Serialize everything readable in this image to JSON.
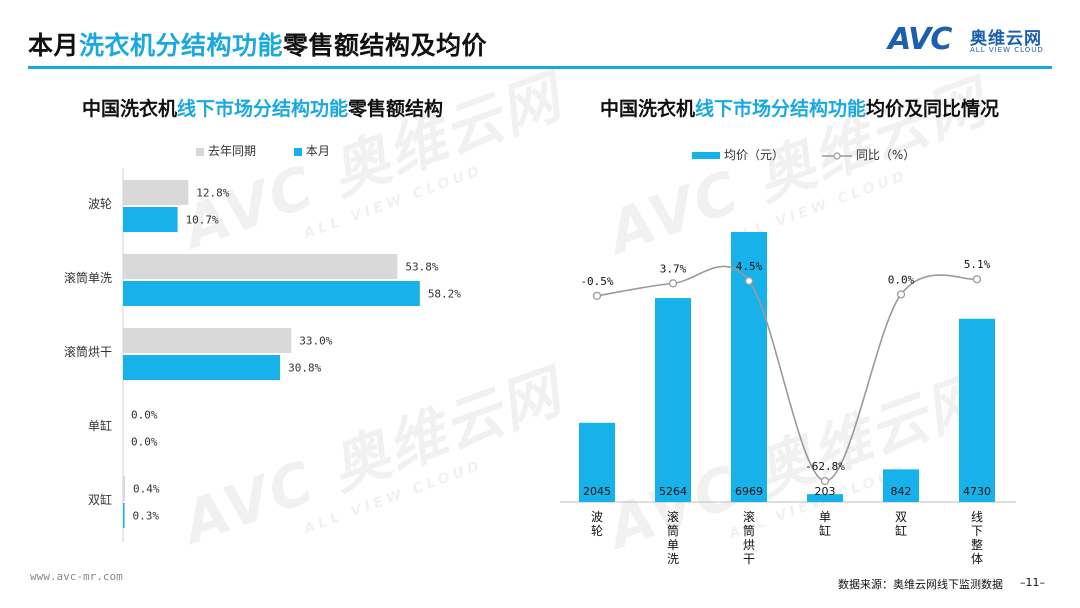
{
  "page": {
    "title_parts": [
      "本月",
      "洗衣机分结构功能",
      "零售额结构及均价"
    ],
    "logo_mark": "AVC",
    "logo_cn": "奥维云网",
    "logo_en": "ALL VIEW CLOUD",
    "watermark_mark": "AVC 奥维云网",
    "watermark_en": "ALL VIEW CLOUD",
    "site_url": "www.avc-mr.com",
    "source": "数据来源：奥维云网线下监测数据",
    "page_number": "–11–"
  },
  "colors": {
    "accent": "#1aa8e0",
    "bar_blue": "#18b2ea",
    "bar_gray": "#d9d9d9",
    "line_gray": "#9a9a9a",
    "logo_blue": "#1d5fae"
  },
  "chart_data": [
    {
      "type": "bar",
      "orientation": "horizontal",
      "title_parts": [
        "中国洗衣机",
        "线下市场分结构功能",
        "零售额结构"
      ],
      "categories": [
        "波轮",
        "滚筒单洗",
        "滚筒烘干",
        "单缸",
        "双缸"
      ],
      "series": [
        {
          "name": "去年同期",
          "values": [
            12.8,
            53.8,
            33.0,
            0.0,
            0.4
          ],
          "labels": [
            "12.8%",
            "53.8%",
            "33.0%",
            "0.0%",
            "0.4%"
          ]
        },
        {
          "name": "本月",
          "values": [
            10.7,
            58.2,
            30.8,
            0.0,
            0.3
          ],
          "labels": [
            "10.7%",
            "58.2%",
            "30.8%",
            "0.0%",
            "0.3%"
          ]
        }
      ],
      "legend_position": "top",
      "grid": false
    },
    {
      "type": "bar+line",
      "title_parts": [
        "中国洗衣机",
        "线下市场分结构功能",
        "均价及同比情况"
      ],
      "categories": [
        "波轮",
        "滚筒单洗",
        "滚筒烘干",
        "单缸",
        "双缸",
        "线下整体"
      ],
      "series": [
        {
          "name": "均价（元）",
          "type": "bar",
          "values": [
            2045,
            5264,
            6969,
            203,
            842,
            4730
          ],
          "labels": [
            "2045",
            "5264",
            "6969",
            "203",
            "842",
            "4730"
          ]
        },
        {
          "name": "同比（%）",
          "type": "line",
          "smooth": true,
          "values": [
            -0.5,
            3.7,
            4.5,
            -62.8,
            0.0,
            5.1
          ],
          "labels": [
            "-0.5%",
            "3.7%",
            "4.5%",
            "-62.8%",
            "0.0%",
            "5.1%"
          ]
        }
      ],
      "legend_position": "top",
      "grid": false
    }
  ]
}
